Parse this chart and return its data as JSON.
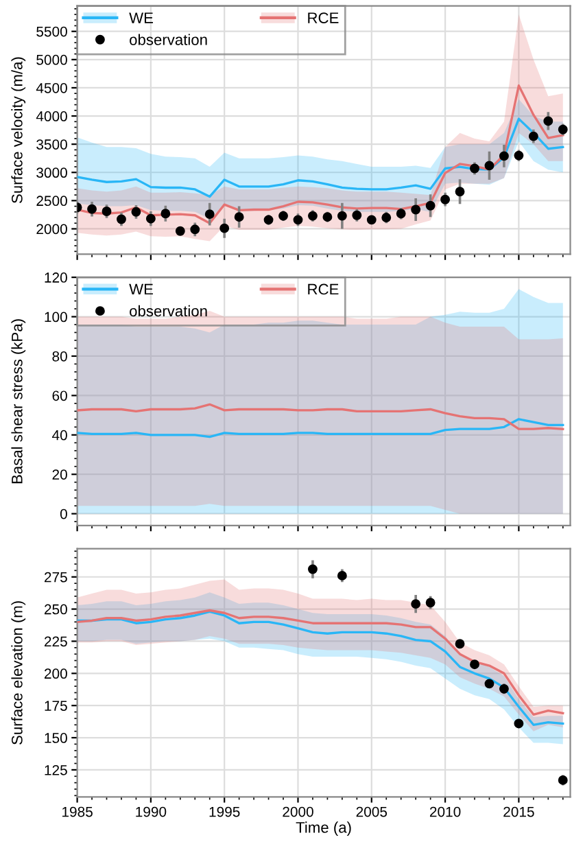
{
  "chart_data": [
    {
      "type": "line",
      "ylabel": "Surface velocity (m/a)",
      "x": [
        1985,
        1986,
        1987,
        1988,
        1989,
        1990,
        1991,
        1992,
        1993,
        1994,
        1995,
        1996,
        1997,
        1998,
        1999,
        2000,
        2001,
        2002,
        2003,
        2004,
        2005,
        2006,
        2007,
        2008,
        2009,
        2010,
        2011,
        2012,
        2013,
        2014,
        2015,
        2016,
        2017,
        2018
      ],
      "xlim": [
        1985,
        2018.5
      ],
      "xticks": [
        1985,
        1990,
        1995,
        2000,
        2005,
        2010,
        2015
      ],
      "ylim": [
        1550,
        5950
      ],
      "yticks": [
        2000,
        2500,
        3000,
        3500,
        4000,
        4500,
        5000,
        5500
      ],
      "tick_labels": "y",
      "grid": true,
      "legend": "top left",
      "series": [
        {
          "name": "WE",
          "color": "#29b6f6",
          "values": [
            2920,
            2870,
            2830,
            2840,
            2880,
            2740,
            2730,
            2730,
            2700,
            2570,
            2870,
            2750,
            2750,
            2750,
            2790,
            2860,
            2840,
            2790,
            2730,
            2710,
            2700,
            2700,
            2730,
            2770,
            2710,
            3070,
            3100,
            3060,
            3050,
            3270,
            3950,
            3700,
            3420,
            3450
          ],
          "upper": [
            3620,
            3530,
            3450,
            3450,
            3430,
            3330,
            3280,
            3270,
            3250,
            3100,
            3350,
            3250,
            3250,
            3250,
            3270,
            3300,
            3280,
            3230,
            3200,
            3150,
            3100,
            3100,
            3100,
            3120,
            3080,
            3450,
            3500,
            3500,
            3500,
            3700,
            4300,
            4000,
            3900,
            3900
          ],
          "lower": [
            2450,
            2420,
            2400,
            2400,
            2420,
            2330,
            2320,
            2320,
            2300,
            2180,
            2430,
            2320,
            2320,
            2330,
            2360,
            2420,
            2410,
            2360,
            2320,
            2300,
            2300,
            2300,
            2320,
            2350,
            2300,
            2800,
            2820,
            2800,
            2780,
            2900,
            3550,
            3200,
            3050,
            3000
          ]
        },
        {
          "name": "RCE",
          "color": "#e57373",
          "values": [
            2340,
            2280,
            2270,
            2290,
            2380,
            2240,
            2250,
            2260,
            2240,
            2100,
            2430,
            2330,
            2340,
            2340,
            2400,
            2480,
            2470,
            2430,
            2380,
            2360,
            2370,
            2370,
            2350,
            2400,
            2460,
            2990,
            3150,
            3110,
            3050,
            3310,
            4540,
            4020,
            3610,
            3660
          ],
          "upper": [
            2720,
            2680,
            2660,
            2680,
            2750,
            2640,
            2640,
            2650,
            2630,
            2600,
            2750,
            2700,
            2700,
            2700,
            2730,
            2750,
            2740,
            2720,
            2680,
            2660,
            2660,
            2660,
            2640,
            2620,
            2600,
            3450,
            3700,
            3600,
            3550,
            3900,
            5800,
            5000,
            4350,
            4400
          ],
          "lower": [
            1930,
            1900,
            1880,
            1900,
            1950,
            1870,
            1860,
            1870,
            1820,
            1780,
            2050,
            1980,
            1980,
            1980,
            2020,
            2050,
            2040,
            2010,
            1990,
            1980,
            1990,
            1990,
            2000,
            2080,
            2150,
            2700,
            2800,
            2800,
            2800,
            2900,
            3700,
            3500,
            3200,
            3200
          ]
        },
        {
          "name": "observation",
          "type": "scatter",
          "color": "#000000",
          "marker": "circle",
          "values": [
            2380,
            2350,
            2310,
            2170,
            2300,
            2180,
            2270,
            1960,
            1990,
            2260,
            2010,
            2210,
            null,
            2160,
            2230,
            2160,
            2230,
            2210,
            2230,
            2240,
            2160,
            2200,
            2270,
            2340,
            2410,
            2520,
            2660,
            3070,
            3120,
            3290,
            3300,
            3640,
            3910,
            3760
          ],
          "errors": [
            100,
            130,
            120,
            120,
            120,
            130,
            140,
            60,
            120,
            200,
            170,
            190,
            null,
            90,
            90,
            110,
            100,
            90,
            230,
            110,
            80,
            100,
            100,
            200,
            200,
            120,
            220,
            110,
            250,
            200,
            100,
            120,
            160,
            100
          ]
        }
      ]
    },
    {
      "type": "line",
      "ylabel": "Basal shear stress (kPa)",
      "x": [
        1985,
        1986,
        1987,
        1988,
        1989,
        1990,
        1991,
        1992,
        1993,
        1994,
        1995,
        1996,
        1997,
        1998,
        1999,
        2000,
        2001,
        2002,
        2003,
        2004,
        2005,
        2006,
        2007,
        2008,
        2009,
        2010,
        2011,
        2012,
        2013,
        2014,
        2015,
        2016,
        2017,
        2018
      ],
      "xlim": [
        1985,
        2018.5
      ],
      "xticks": [
        1985,
        1990,
        1995,
        2000,
        2005,
        2010,
        2015
      ],
      "ylim": [
        -6,
        120
      ],
      "yticks": [
        0,
        20,
        40,
        60,
        80,
        100,
        120
      ],
      "tick_labels": "y",
      "grid": true,
      "legend": "top left",
      "series": [
        {
          "name": "WE",
          "color": "#29b6f6",
          "values": [
            41,
            40.5,
            40.5,
            40.5,
            41,
            40,
            40,
            40,
            40,
            39,
            41,
            40.5,
            40.5,
            40.5,
            40.5,
            41,
            41,
            40.5,
            40.5,
            40.5,
            40.5,
            40.5,
            40.5,
            40.5,
            40.5,
            42.5,
            43,
            43,
            43,
            44,
            48,
            46.5,
            45,
            45
          ],
          "upper": [
            96,
            96,
            96,
            96,
            95,
            95,
            95,
            95,
            94,
            92,
            96,
            96,
            96,
            97,
            97,
            98,
            98,
            97,
            96,
            96,
            96,
            96,
            96,
            96,
            100,
            101,
            102.5,
            102,
            102,
            104,
            114,
            110,
            107,
            107
          ],
          "lower": [
            0,
            0,
            0,
            0,
            0,
            0,
            0,
            0,
            0,
            0,
            0,
            0,
            0,
            0,
            0,
            0,
            0,
            0,
            0,
            0,
            0,
            0,
            0,
            0,
            0,
            0,
            0,
            0,
            0,
            0,
            0,
            0,
            0,
            0
          ]
        },
        {
          "name": "RCE",
          "color": "#e57373",
          "values": [
            52.5,
            53,
            53,
            53,
            52,
            53,
            53,
            53,
            53.5,
            55.5,
            52.5,
            53,
            53,
            53,
            53,
            52.5,
            52.5,
            53,
            53,
            52,
            52,
            52,
            52,
            52.5,
            53,
            51,
            49.5,
            48.5,
            48.5,
            48,
            43,
            43,
            43.5,
            43
          ],
          "upper": [
            100,
            100,
            100,
            100,
            99,
            99,
            99,
            100,
            101,
            103,
            100,
            100,
            100,
            100,
            100,
            100,
            100,
            100,
            100,
            99,
            99,
            99,
            100,
            100,
            100,
            97,
            95,
            95,
            95,
            95,
            88.5,
            88.5,
            88.5,
            89
          ],
          "lower": [
            4,
            4,
            4,
            4,
            4,
            4,
            4,
            4,
            4,
            5,
            4,
            4,
            4,
            4,
            4,
            4,
            4,
            4,
            4,
            4,
            4,
            4,
            4,
            4,
            4,
            2,
            0,
            0,
            0,
            0,
            0,
            0,
            0,
            0
          ]
        },
        {
          "name": "observation",
          "type": "scatter",
          "color": "#000000",
          "marker": "circle",
          "values": [
            null,
            null,
            null,
            null,
            null,
            null,
            null,
            null,
            null,
            null,
            null,
            null,
            null,
            null,
            null,
            null,
            null,
            null,
            null,
            null,
            null,
            null,
            null,
            null,
            null,
            null,
            null,
            null,
            null,
            null,
            null,
            null,
            null,
            null
          ]
        }
      ]
    },
    {
      "type": "line",
      "ylabel": "Surface elevation (m)",
      "xlabel": "Time (a)",
      "x": [
        1985,
        1986,
        1987,
        1988,
        1989,
        1990,
        1991,
        1992,
        1993,
        1994,
        1995,
        1996,
        1997,
        1998,
        1999,
        2000,
        2001,
        2002,
        2003,
        2004,
        2005,
        2006,
        2007,
        2008,
        2009,
        2010,
        2011,
        2012,
        2013,
        2014,
        2015,
        2016,
        2017,
        2018
      ],
      "xlim": [
        1985,
        2018.5
      ],
      "xticks": [
        1985,
        1990,
        1995,
        2000,
        2005,
        2010,
        2015
      ],
      "ylim": [
        104,
        297
      ],
      "yticks": [
        125,
        150,
        175,
        200,
        225,
        250,
        275
      ],
      "grid": true,
      "series": [
        {
          "color": "#29b6f6",
          "values": [
            241,
            241,
            242,
            242,
            239,
            240,
            242,
            243,
            245,
            248,
            245,
            239,
            240,
            240,
            238,
            235,
            232,
            231,
            232,
            232,
            232,
            231,
            229,
            226,
            225,
            217,
            205,
            200,
            196,
            189,
            174,
            160,
            162,
            161
          ],
          "upper": [
            253,
            254,
            256,
            256,
            253,
            254,
            256,
            257,
            259,
            263,
            259,
            254,
            255,
            255,
            253,
            250,
            247,
            246,
            246,
            246,
            246,
            245,
            243,
            240,
            238,
            229,
            215,
            209,
            205,
            198,
            180,
            166,
            167,
            167
          ],
          "lower": [
            225,
            225,
            226,
            226,
            223,
            224,
            225,
            225,
            226,
            227,
            225,
            220,
            220,
            219,
            218,
            215,
            213,
            213,
            213,
            213,
            212,
            211,
            209,
            206,
            204,
            196,
            188,
            183,
            180,
            172,
            158,
            146,
            146,
            145
          ]
        },
        {
          "color": "#e57373",
          "values": [
            240,
            241,
            243,
            243,
            241,
            242,
            244,
            245,
            247,
            249,
            247,
            243,
            244,
            244,
            243,
            241,
            239,
            239,
            239,
            239,
            239,
            239,
            238,
            236,
            236,
            227,
            215,
            209,
            206,
            200,
            183,
            168,
            171,
            169
          ],
          "upper": [
            259,
            262,
            265,
            265,
            262,
            263,
            265,
            266,
            269,
            272,
            273,
            265,
            266,
            266,
            265,
            262,
            258,
            258,
            258,
            257,
            258,
            257,
            257,
            255,
            253,
            240,
            224,
            218,
            214,
            207,
            190,
            174,
            175,
            175
          ],
          "lower": [
            224,
            224,
            225,
            225,
            222,
            223,
            224,
            225,
            226,
            229,
            227,
            223,
            223,
            223,
            222,
            220,
            219,
            218,
            218,
            218,
            218,
            217,
            216,
            214,
            212,
            207,
            197,
            192,
            188,
            182,
            168,
            155,
            160,
            158
          ]
        },
        {
          "type": "scatter",
          "color": "#000000",
          "marker": "circle",
          "values": [
            null,
            null,
            null,
            null,
            null,
            null,
            null,
            null,
            null,
            null,
            null,
            null,
            null,
            null,
            null,
            null,
            281,
            null,
            276,
            null,
            null,
            null,
            null,
            254,
            255,
            null,
            223,
            207,
            192,
            188,
            161,
            null,
            null,
            117
          ],
          "errors": [
            null,
            null,
            null,
            null,
            null,
            null,
            null,
            null,
            null,
            null,
            null,
            null,
            null,
            null,
            null,
            null,
            7,
            null,
            5,
            null,
            null,
            null,
            null,
            7,
            5,
            null,
            3,
            3,
            2,
            4,
            2,
            null,
            null,
            4
          ]
        }
      ]
    }
  ]
}
